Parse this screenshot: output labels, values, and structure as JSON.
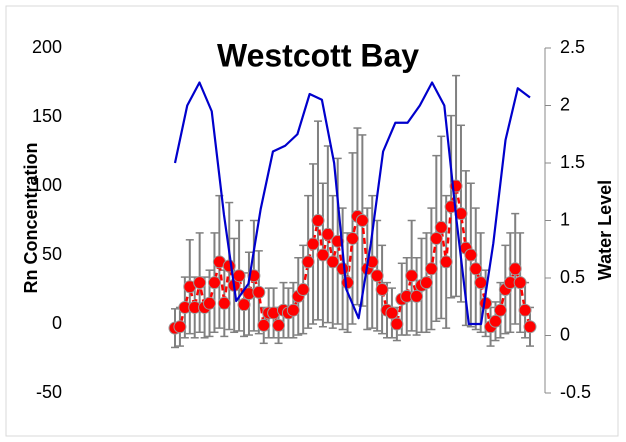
{
  "chart_data": {
    "type": "dual_axis_line",
    "title": "Westcott Bay",
    "y_label": "Rn Concentration",
    "y2_label": "Water Level",
    "ylim": [
      -50,
      200
    ],
    "yticks": [
      -50,
      0,
      50,
      100,
      150,
      200
    ],
    "y2lim": [
      -0.5,
      2.5
    ],
    "y2ticks": [
      -0.5,
      0,
      0.5,
      1,
      1.5,
      2,
      2.5
    ],
    "series": [
      {
        "name": "Rn Concentration",
        "color": "#ff0000",
        "error_color": "#808080",
        "axis": "y",
        "values": [
          -3,
          -2,
          12,
          27,
          12,
          30,
          12,
          15,
          30,
          45,
          15,
          42,
          28,
          35,
          14,
          22,
          35,
          23,
          -1,
          8,
          8,
          -1,
          10,
          8,
          10,
          20,
          25,
          45,
          58,
          75,
          50,
          65,
          45,
          60,
          40,
          30,
          62,
          78,
          75,
          40,
          45,
          35,
          25,
          10,
          8,
          0,
          18,
          20,
          35,
          20,
          28,
          30,
          40,
          62,
          70,
          45,
          85,
          100,
          80,
          55,
          50,
          40,
          30,
          15,
          -2,
          2,
          10,
          25,
          30,
          40,
          30,
          10,
          -2
        ],
        "errors": [
          14,
          14,
          22,
          34,
          22,
          36,
          22,
          24,
          36,
          48,
          24,
          46,
          34,
          40,
          23,
          30,
          40,
          30,
          13,
          18,
          18,
          13,
          20,
          18,
          20,
          28,
          32,
          48,
          58,
          72,
          52,
          64,
          48,
          60,
          44,
          36,
          62,
          64,
          62,
          44,
          48,
          40,
          32,
          20,
          18,
          12,
          26,
          28,
          40,
          28,
          34,
          36,
          44,
          60,
          66,
          48,
          66,
          80,
          64,
          56,
          52,
          44,
          36,
          24,
          14,
          14,
          20,
          32,
          36,
          40,
          36,
          20,
          14
        ]
      },
      {
        "name": "Water Level",
        "color": "#0000cc",
        "axis": "y2",
        "values": [
          1.5,
          2.0,
          2.2,
          1.95,
          1.05,
          0.3,
          0.45,
          1.1,
          1.6,
          1.65,
          1.75,
          2.1,
          2.05,
          1.5,
          0.4,
          0.15,
          0.8,
          1.6,
          1.85,
          1.85,
          2.0,
          2.2,
          2.0,
          1.0,
          0.1,
          0.1,
          0.8,
          1.7,
          2.15,
          2.07
        ]
      }
    ]
  }
}
